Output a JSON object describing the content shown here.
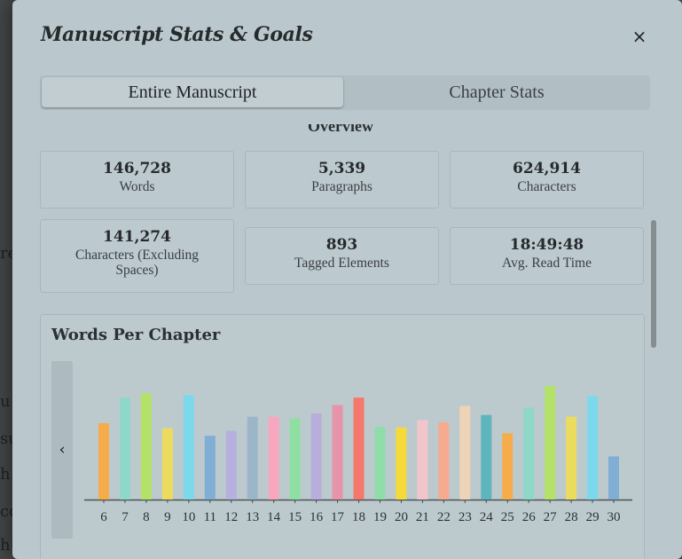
{
  "background_text": [
    "re",
    "u",
    "su",
    "h",
    "co",
    "h"
  ],
  "modal": {
    "title": "Manuscript Stats & Goals",
    "close_label": "×"
  },
  "tabs": [
    {
      "label": "Entire Manuscript",
      "active": true
    },
    {
      "label": "Chapter Stats",
      "active": false
    }
  ],
  "overview": {
    "heading": "Overview",
    "stats": [
      {
        "value": "146,728",
        "label": "Words"
      },
      {
        "value": "5,339",
        "label": "Paragraphs"
      },
      {
        "value": "624,914",
        "label": "Characters"
      },
      {
        "value": "141,274",
        "label": "Characters (Excluding Spaces)"
      },
      {
        "value": "893",
        "label": "Tagged Elements"
      },
      {
        "value": "18:49:48",
        "label": "Avg. Read Time"
      }
    ]
  },
  "chart": {
    "title": "Words Per Chapter",
    "prev_icon": "chevron-left-icon"
  },
  "chart_data": {
    "type": "bar",
    "title": "Words Per Chapter",
    "xlabel": "",
    "ylabel": "",
    "grid": false,
    "categories": [
      "6",
      "7",
      "8",
      "9",
      "10",
      "11",
      "12",
      "13",
      "14",
      "15",
      "16",
      "17",
      "18",
      "19",
      "20",
      "21",
      "22",
      "23",
      "24",
      "25",
      "26",
      "27",
      "28",
      "29",
      "30"
    ],
    "values": [
      92,
      123,
      128,
      86,
      126,
      77,
      83,
      100,
      100,
      98,
      104,
      114,
      123,
      88,
      87,
      96,
      93,
      113,
      102,
      80,
      111,
      137,
      100,
      125,
      52
    ],
    "colors": [
      "#f6ac4b",
      "#8fd8c9",
      "#b4e167",
      "#ecdc5e",
      "#7cd9eb",
      "#80aed4",
      "#b5b0de",
      "#9cb6c9",
      "#f8a7bf",
      "#8fdfa3",
      "#b8aedc",
      "#e694a9",
      "#f6786c",
      "#8fdda8",
      "#f5da3a",
      "#f0c6cb",
      "#f6aa90",
      "#eed3b6",
      "#5db5be",
      "#f6ac4b",
      "#8fd8c9",
      "#b4e167",
      "#ecdc5e",
      "#7cd9eb",
      "#80aed4"
    ]
  }
}
